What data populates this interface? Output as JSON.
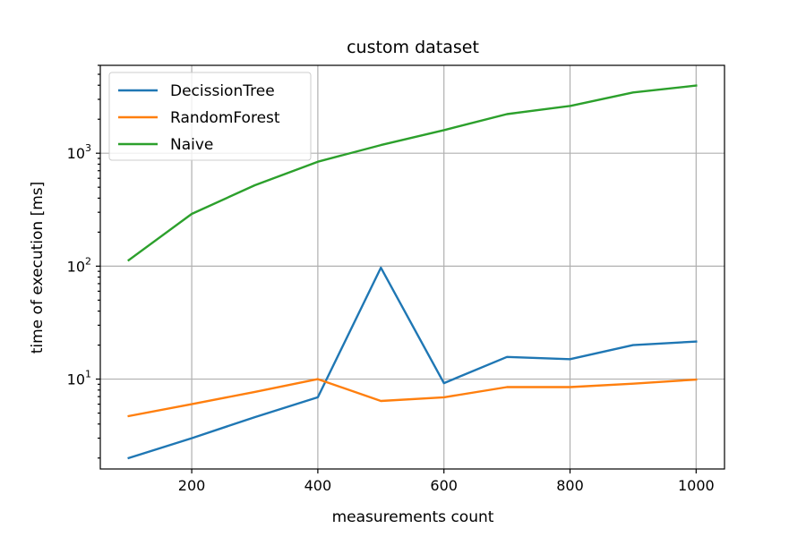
{
  "chart_data": {
    "type": "line",
    "title": "custom dataset",
    "xlabel": "measurements count",
    "ylabel": "time of execution [ms]",
    "x": [
      100,
      200,
      300,
      400,
      500,
      600,
      700,
      800,
      900,
      1000
    ],
    "xlim": [
      55,
      1045
    ],
    "ylim": [
      1.6,
      6000
    ],
    "y_scale": "log",
    "x_ticks": [
      200,
      400,
      600,
      800,
      1000
    ],
    "x_tick_labels": [
      "200",
      "400",
      "600",
      "800",
      "1000"
    ],
    "y_ticks": [
      {
        "value": 10,
        "base": "10",
        "exp": "1"
      },
      {
        "value": 100,
        "base": "10",
        "exp": "2"
      },
      {
        "value": 1000,
        "base": "10",
        "exp": "3"
      }
    ],
    "grid": true,
    "legend_position": "upper-left",
    "series": [
      {
        "name": "DecissionTree",
        "color": "#1f77b4",
        "values": [
          2.0,
          3.0,
          4.6,
          6.9,
          97,
          9.2,
          15.7,
          15.0,
          20.0,
          21.5
        ]
      },
      {
        "name": "RandomForest",
        "color": "#ff7f0e",
        "values": [
          4.7,
          6.0,
          7.7,
          10.0,
          6.4,
          6.9,
          8.5,
          8.5,
          9.1,
          9.9
        ]
      },
      {
        "name": "Naive",
        "color": "#2ca02c",
        "values": [
          113,
          290,
          520,
          840,
          1180,
          1600,
          2220,
          2620,
          3450,
          3970
        ]
      }
    ]
  }
}
